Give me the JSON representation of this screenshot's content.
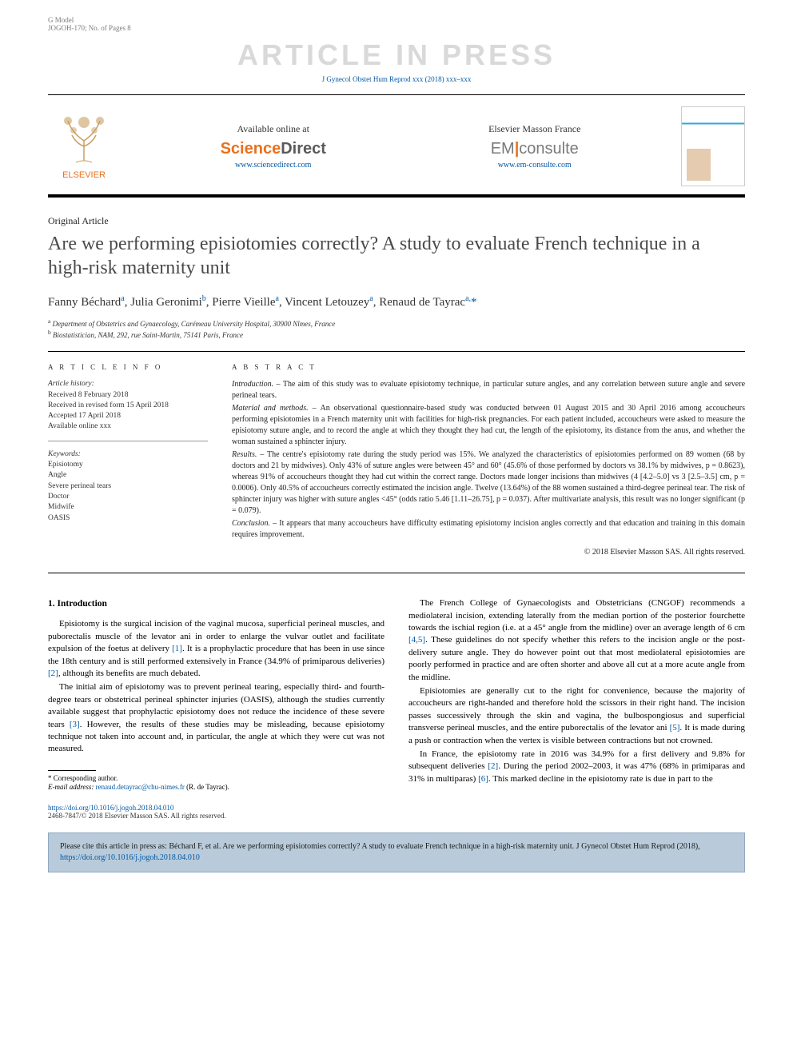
{
  "header": {
    "model_left": "G Model",
    "model_right": "JOGOH-170; No. of Pages 8",
    "watermark": "ARTICLE IN PRESS",
    "journal_ref": "J Gynecol Obstet Hum Reprod xxx (2018) xxx–xxx"
  },
  "banner": {
    "elsevier": "ELSEVIER",
    "available": "Available online at",
    "sd_sci": "Science",
    "sd_dir": "Direct",
    "sd_url": "www.sciencedirect.com",
    "em_head": "Elsevier Masson France",
    "em_logo_em": "EM",
    "em_logo_consulte": "consulte",
    "em_url": "www.em-consulte.com"
  },
  "article": {
    "type": "Original Article",
    "title": "Are we performing episiotomies correctly? A study to evaluate French technique in a high-risk maternity unit",
    "authors_html": "Fanny Béchard<sup>a</sup>, Julia Geronimi<sup>b</sup>, Pierre Vieille<sup>a</sup>, Vincent Letouzey<sup>a</sup>, Renaud de Tayrac<sup>a,</sup><span class='corr'>*</span>",
    "affil_a": "Department of Obstetrics and Gynaecology, Carémeau University Hospital, 30900 Nîmes, France",
    "affil_b": "Biostatistician, NAM, 292, rue Saint-Martin, 75141 Paris, France"
  },
  "info": {
    "head": "A R T I C L E  I N F O",
    "history_label": "Article history:",
    "received": "Received 8 February 2018",
    "revised": "Received in revised form 15 April 2018",
    "accepted": "Accepted 17 April 2018",
    "online": "Available online xxx",
    "kw_label": "Keywords:",
    "kw": [
      "Episiotomy",
      "Angle",
      "Severe perineal tears",
      "Doctor",
      "Midwife",
      "OASIS"
    ]
  },
  "abstract": {
    "head": "A B S T R A C T",
    "intro_lead": "Introduction. – ",
    "intro": "The aim of this study was to evaluate episiotomy technique, in particular suture angles, and any correlation between suture angle and severe perineal tears.",
    "mm_lead": "Material and methods. – ",
    "mm": "An observational questionnaire-based study was conducted between 01 August 2015 and 30 April 2016 among accoucheurs performing episiotomies in a French maternity unit with facilities for high-risk pregnancies. For each patient included, accoucheurs were asked to measure the episiotomy suture angle, and to record the angle at which they thought they had cut, the length of the episiotomy, its distance from the anus, and whether the woman sustained a sphincter injury.",
    "res_lead": "Results. – ",
    "res": "The centre's episiotomy rate during the study period was 15%. We analyzed the characteristics of episiotomies performed on 89 women (68 by doctors and 21 by midwives). Only 43% of suture angles were between 45° and 60° (45.6% of those performed by doctors vs 38.1% by midwives, p = 0.8623), whereas 91% of accoucheurs thought they had cut within the correct range. Doctors made longer incisions than midwives (4 [4.2–5.0] vs 3 [2.5–3.5] cm, p = 0.0006). Only 40.5% of accoucheurs correctly estimated the incision angle. Twelve (13.64%) of the 88 women sustained a third-degree perineal tear. The risk of sphincter injury was higher with suture angles <45° (odds ratio 5.46 [1.11–26.75], p = 0.037). After multivariate analysis, this result was no longer significant (p = 0.079).",
    "con_lead": "Conclusion. – ",
    "con": "It appears that many accoucheurs have difficulty estimating episiotomy incision angles correctly and that education and training in this domain requires improvement.",
    "copyright": "© 2018 Elsevier Masson SAS. All rights reserved."
  },
  "body": {
    "h1": "1. Introduction",
    "p1": "Episiotomy is the surgical incision of the vaginal mucosa, superficial perineal muscles, and puborectalis muscle of the levator ani in order to enlarge the vulvar outlet and facilitate expulsion of the foetus at delivery [1]. It is a prophylactic procedure that has been in use since the 18th century and is still performed extensively in France (34.9% of primiparous deliveries) [2], although its benefits are much debated.",
    "p2": "The initial aim of episiotomy was to prevent perineal tearing, especially third- and fourth-degree tears or obstetrical perineal sphincter injuries (OASIS), although the studies currently available suggest that prophylactic episiotomy does not reduce the incidence of these severe tears [3]. However, the results of these studies may be misleading, because episiotomy technique not taken into account and, in particular, the angle at which they were cut was not measured.",
    "p3": "The French College of Gynaecologists and Obstetricians (CNGOF) recommends a mediolateral incision, extending laterally from the median portion of the posterior fourchette towards the ischial region (i.e. at a 45° angle from the midline) over an average length of 6 cm [4,5]. These guidelines do not specify whether this refers to the incision angle or the post-delivery suture angle. They do however point out that most mediolateral episiotomies are poorly performed in practice and are often shorter and above all cut at a more acute angle from the midline.",
    "p4": "Episiotomies are generally cut to the right for convenience, because the majority of accoucheurs are right-handed and therefore hold the scissors in their right hand. The incision passes successively through the skin and vagina, the bulbospongiosus and superficial transverse perineal muscles, and the entire puborectalis of the levator ani [5]. It is made during a push or contraction when the vertex is visible between contractions but not crowned.",
    "p5": "In France, the episiotomy rate in 2016 was 34.9% for a first delivery and 9.8% for subsequent deliveries [2]. During the period 2002–2003, it was 47% (68% in primiparas and 31% in multiparas) [6]. This marked decline in the episiotomy rate is due in part to the"
  },
  "footnote": {
    "corr": "* Corresponding author.",
    "email_label": "E-mail address:",
    "email": "renaud.detayrac@chu-nimes.fr",
    "email_who": "(R. de Tayrac)."
  },
  "doi": {
    "url": "https://doi.org/10.1016/j.jogoh.2018.04.010",
    "issn": "2468-7847/© 2018 Elsevier Masson SAS. All rights reserved."
  },
  "cite": {
    "text": "Please cite this article in press as: Béchard F, et al. Are we performing episiotomies correctly? A study to evaluate French technique in a high-risk maternity unit. J Gynecol Obstet Hum Reprod (2018), ",
    "url": "https://doi.org/10.1016/j.jogoh.2018.04.010"
  },
  "colors": {
    "link": "#0058a5",
    "orange": "#e9711c",
    "watermark": "#d9d9d9",
    "citebox_bg": "#b9cbda",
    "citebox_border": "#8ea9c0"
  }
}
